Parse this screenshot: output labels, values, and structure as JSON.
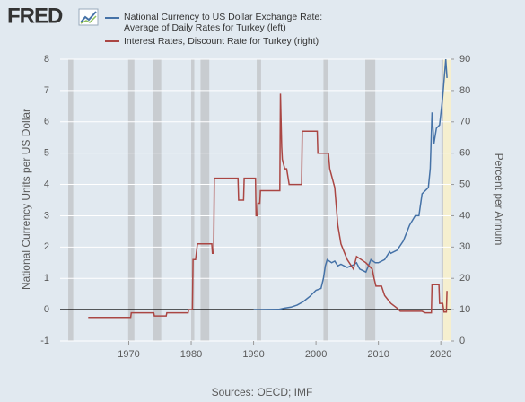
{
  "logo": "FRED",
  "chart_data": {
    "type": "line",
    "source": "Sources: OECD; IMF",
    "ylabel": "National Currency Units per US Dollar",
    "y2label": "Percent per Annum",
    "xlim": [
      1959,
      2021.7
    ],
    "xticks": [
      1970,
      1980,
      1990,
      2000,
      2010,
      2020
    ],
    "ylim": [
      -1,
      8
    ],
    "yticks": [
      -1,
      0,
      1,
      2,
      3,
      4,
      5,
      6,
      7,
      8
    ],
    "y2lim": [
      0,
      90
    ],
    "y2ticks": [
      0,
      10,
      20,
      30,
      40,
      50,
      60,
      70,
      80,
      90
    ],
    "grid": true,
    "zero_line": true,
    "recession_color": "#c8ccd0",
    "recessions": [
      [
        1960.3,
        1961.1
      ],
      [
        1969.9,
        1970.9
      ],
      [
        1973.9,
        1975.2
      ],
      [
        1980.0,
        1980.5
      ],
      [
        1981.5,
        1982.9
      ],
      [
        1990.5,
        1991.2
      ],
      [
        2001.2,
        2001.9
      ],
      [
        2007.9,
        2009.5
      ],
      [
        2020.1,
        2020.4
      ]
    ],
    "highlight": [
      2020.2,
      2021.6
    ],
    "highlight_color": "#f5efcf",
    "series": [
      {
        "name": "National Currency to US Dollar Exchange Rate: Average of Daily Rates for Turkey (left)",
        "color": "#4572a7",
        "axis": "y",
        "x": [
          1990,
          1994,
          1995,
          1996,
          1997,
          1998,
          1999,
          2000,
          2000.8,
          2001.2,
          2001.5,
          2001.8,
          2002.5,
          2003,
          2003.5,
          2004,
          2005,
          2006,
          2006.5,
          2007,
          2008,
          2008.8,
          2009.5,
          2010,
          2011,
          2011.8,
          2012,
          2013,
          2014,
          2015,
          2015.9,
          2016.5,
          2017,
          2018,
          2018.3,
          2018.6,
          2018.9,
          2019.3,
          2019.8,
          2020.3,
          2020.8,
          2021
        ],
        "values": [
          0,
          0.01,
          0.05,
          0.08,
          0.15,
          0.26,
          0.42,
          0.62,
          0.68,
          1.0,
          1.4,
          1.6,
          1.5,
          1.55,
          1.4,
          1.45,
          1.35,
          1.43,
          1.5,
          1.3,
          1.2,
          1.6,
          1.5,
          1.5,
          1.6,
          1.85,
          1.8,
          1.9,
          2.2,
          2.7,
          3.0,
          3.0,
          3.7,
          3.9,
          4.5,
          6.3,
          5.3,
          5.8,
          5.9,
          6.8,
          8.0,
          7.4
        ]
      },
      {
        "name": "Interest Rates, Discount Rate for Turkey (right)",
        "color": "#aa4643",
        "axis": "y2",
        "x": [
          1963.5,
          1970.3,
          1970.4,
          1974,
          1974.1,
          1976,
          1976.1,
          1979.5,
          1979.6,
          1980.2,
          1980.3,
          1980.7,
          1981,
          1983.3,
          1983.4,
          1983.6,
          1983.7,
          1987.5,
          1987.6,
          1988.4,
          1988.5,
          1990.3,
          1990.4,
          1990.6,
          1990.7,
          1991,
          1991.1,
          1994.2,
          1994.3,
          1994.5,
          1994.6,
          1995,
          1995.3,
          1995.7,
          1997.7,
          1997.8,
          2000.2,
          2000.3,
          2002,
          2002.2,
          2003,
          2003.5,
          2004,
          2005,
          2006,
          2006.5,
          2008,
          2009,
          2009.3,
          2009.6,
          2010.5,
          2011,
          2012,
          2013,
          2013.5,
          2017,
          2017.5,
          2018.5,
          2018.6,
          2019.7,
          2019.8,
          2020.3,
          2020.5,
          2020.9,
          2021
        ],
        "values": [
          7.5,
          7.5,
          9,
          9,
          8,
          8,
          9,
          9,
          10,
          10,
          26,
          26,
          31,
          31,
          28,
          28,
          52,
          52,
          45,
          45,
          52,
          52,
          40,
          40,
          44,
          44,
          48,
          48,
          79,
          62,
          58,
          55,
          55,
          50,
          50,
          67,
          67,
          60,
          60,
          55,
          49,
          37,
          31,
          26,
          23,
          27,
          25,
          23,
          20,
          17.5,
          17.5,
          14.5,
          12,
          10.5,
          9.5,
          9.5,
          9,
          9,
          18,
          18,
          12,
          12,
          9.25,
          9.25,
          16
        ]
      }
    ]
  }
}
